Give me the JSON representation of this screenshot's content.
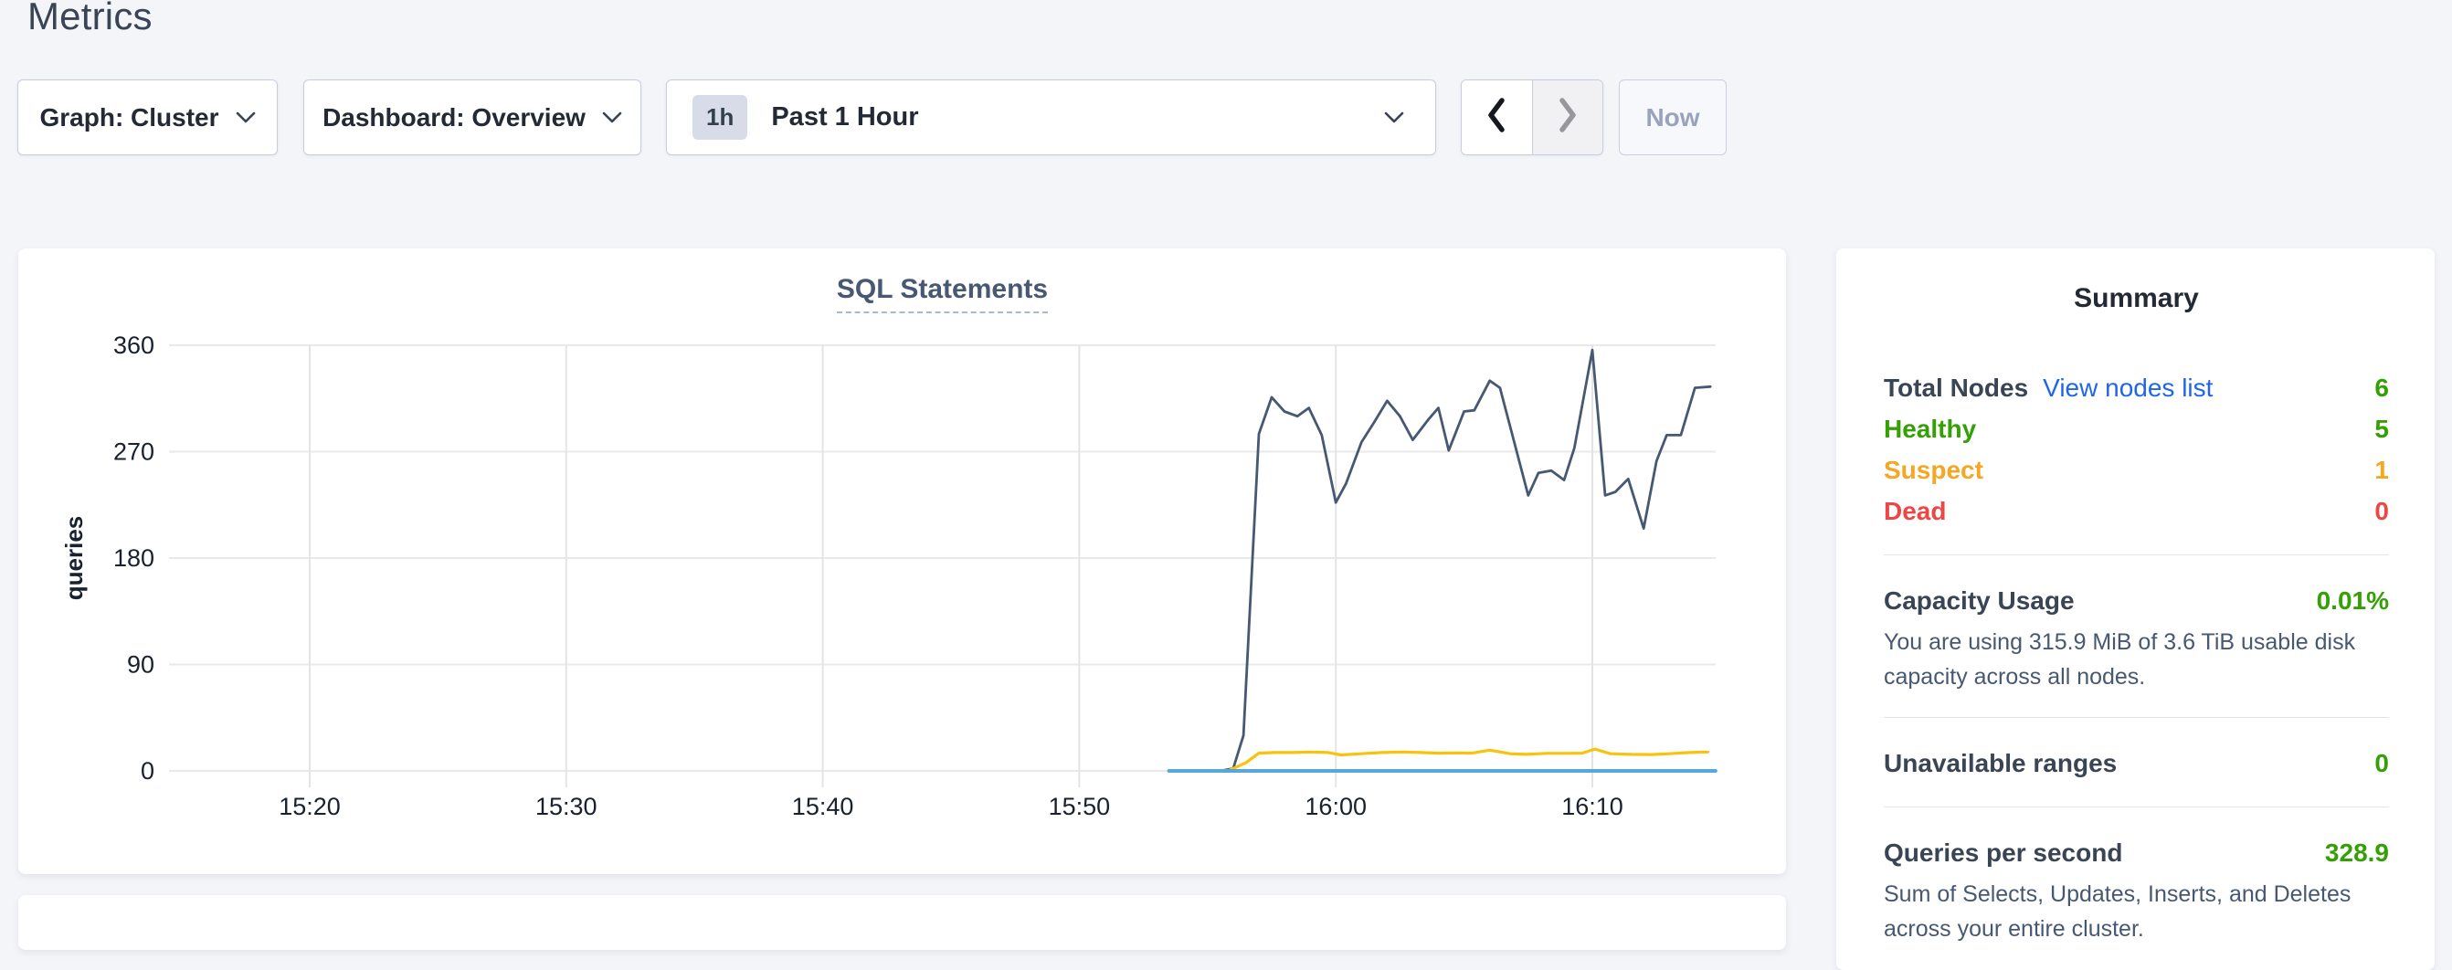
{
  "page": {
    "title": "Metrics"
  },
  "toolbar": {
    "graph_dropdown": {
      "label": "Graph: Cluster"
    },
    "dashboard_dropdown": {
      "label": "Dashboard: Overview"
    },
    "time_selector": {
      "badge": "1h",
      "label": "Past 1 Hour"
    },
    "now_button": "Now"
  },
  "summary": {
    "title": "Summary",
    "total_nodes": {
      "label": "Total Nodes",
      "link": "View nodes list",
      "value": "6"
    },
    "statuses": [
      {
        "label": "Healthy",
        "value": "5",
        "color": "#35a006"
      },
      {
        "label": "Suspect",
        "value": "1",
        "color": "#f5a623"
      },
      {
        "label": "Dead",
        "value": "0",
        "color": "#ef4545"
      }
    ],
    "capacity": {
      "label": "Capacity Usage",
      "value": "0.01%",
      "description": "You are using 315.9 MiB of 3.6 TiB usable disk capacity across all nodes."
    },
    "unavailable": {
      "label": "Unavailable ranges",
      "value": "0"
    },
    "qps": {
      "label": "Queries per second",
      "value": "328.9",
      "description": "Sum of Selects, Updates, Inserts, and Deletes across your entire cluster."
    }
  },
  "colors": {
    "page_background": "#f4f5f9",
    "link_blue": "#2065eb",
    "green": "#35a006",
    "orange": "#f5a623",
    "red": "#ef4545",
    "heading": "#242a35"
  },
  "chart_data": {
    "type": "line",
    "title": "SQL Statements",
    "ylabel": "queries",
    "ylim": [
      0,
      360
    ],
    "y_ticks": [
      0,
      90,
      180,
      270,
      360
    ],
    "x_domain_minutes": [
      0,
      60
    ],
    "x_ticks": [
      {
        "t": 5,
        "label": "15:20"
      },
      {
        "t": 15,
        "label": "15:30"
      },
      {
        "t": 25,
        "label": "15:40"
      },
      {
        "t": 35,
        "label": "15:50"
      },
      {
        "t": 45,
        "label": "16:00"
      },
      {
        "t": 55,
        "label": "16:10"
      }
    ],
    "grid": true,
    "legend": "none",
    "series": [
      {
        "name": "navy-line",
        "color": "#475872",
        "width": 2.8,
        "points": [
          [
            38.5,
            0
          ],
          [
            39.5,
            0
          ],
          [
            40.5,
            0
          ],
          [
            41,
            2
          ],
          [
            41.4,
            30
          ],
          [
            42,
            285
          ],
          [
            42.5,
            316
          ],
          [
            43,
            304
          ],
          [
            43.5,
            300
          ],
          [
            43.95,
            307
          ],
          [
            44.45,
            284
          ],
          [
            45,
            227
          ],
          [
            45.4,
            243
          ],
          [
            46,
            278
          ],
          [
            46.5,
            295
          ],
          [
            47,
            313
          ],
          [
            47.5,
            300
          ],
          [
            48,
            280
          ],
          [
            48.6,
            297
          ],
          [
            49,
            307
          ],
          [
            49.4,
            271
          ],
          [
            50,
            304
          ],
          [
            50.4,
            305
          ],
          [
            51,
            330
          ],
          [
            51.4,
            324
          ],
          [
            52.5,
            233
          ],
          [
            52.9,
            252
          ],
          [
            53.4,
            254
          ],
          [
            53.9,
            246
          ],
          [
            54.3,
            273
          ],
          [
            55,
            356
          ],
          [
            55.5,
            233
          ],
          [
            55.9,
            236
          ],
          [
            56.4,
            247
          ],
          [
            57,
            205
          ],
          [
            57.5,
            262
          ],
          [
            57.9,
            284
          ],
          [
            58.45,
            284
          ],
          [
            59,
            324
          ],
          [
            59.6,
            325
          ]
        ]
      },
      {
        "name": "yellow-line",
        "color": "#f8c30d",
        "width": 3.2,
        "points": [
          [
            38.5,
            0
          ],
          [
            40.8,
            0
          ],
          [
            41.5,
            7
          ],
          [
            42,
            15
          ],
          [
            42.6,
            15.5
          ],
          [
            43.3,
            15.5
          ],
          [
            44,
            16
          ],
          [
            44.7,
            15.5
          ],
          [
            45.2,
            13.5
          ],
          [
            46,
            14.5
          ],
          [
            46.8,
            15.5
          ],
          [
            47.6,
            16
          ],
          [
            48.3,
            15.5
          ],
          [
            49,
            15
          ],
          [
            49.7,
            15.2
          ],
          [
            50.3,
            15
          ],
          [
            51,
            17.5
          ],
          [
            51.8,
            14.5
          ],
          [
            52.4,
            14
          ],
          [
            53.2,
            14.8
          ],
          [
            54,
            14.8
          ],
          [
            54.6,
            15
          ],
          [
            55.1,
            18.5
          ],
          [
            55.7,
            14.5
          ],
          [
            56.5,
            14
          ],
          [
            57.3,
            13.8
          ],
          [
            58,
            14.5
          ],
          [
            58.8,
            15.5
          ],
          [
            59.5,
            16
          ]
        ]
      },
      {
        "name": "blue-line",
        "color": "#57a7da",
        "width": 4,
        "points": [
          [
            38.5,
            0
          ],
          [
            45,
            0
          ],
          [
            52,
            0
          ],
          [
            59.8,
            0
          ]
        ]
      }
    ]
  }
}
